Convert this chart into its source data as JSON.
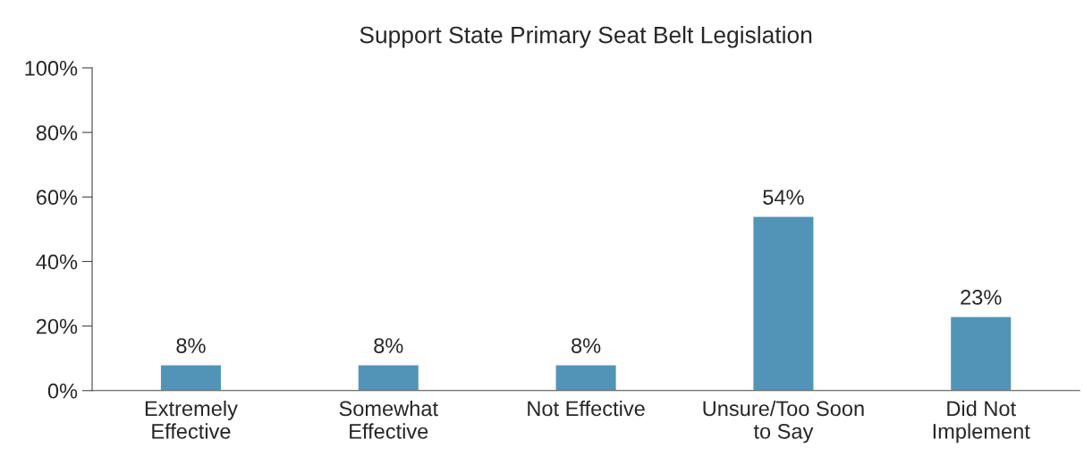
{
  "chart_data": {
    "type": "bar",
    "title": "Support State Primary Seat Belt Legislation",
    "categories": [
      "Extremely\nEffective",
      "Somewhat\nEffective",
      "Not Effective",
      "Unsure/Too Soon\nto Say",
      "Did Not\nImplement"
    ],
    "values": [
      8,
      8,
      8,
      54,
      23
    ],
    "value_labels": [
      "8%",
      "8%",
      "8%",
      "54%",
      "23%"
    ],
    "color": "#5294b8",
    "ylim": [
      0,
      100
    ],
    "yticks": [
      {
        "value": 0,
        "label": "0%"
      },
      {
        "value": 20,
        "label": "20%"
      },
      {
        "value": 40,
        "label": "40%"
      },
      {
        "value": 60,
        "label": "60%"
      },
      {
        "value": 80,
        "label": "80%"
      },
      {
        "value": 100,
        "label": "100%"
      }
    ],
    "grid": false,
    "legend": false
  }
}
